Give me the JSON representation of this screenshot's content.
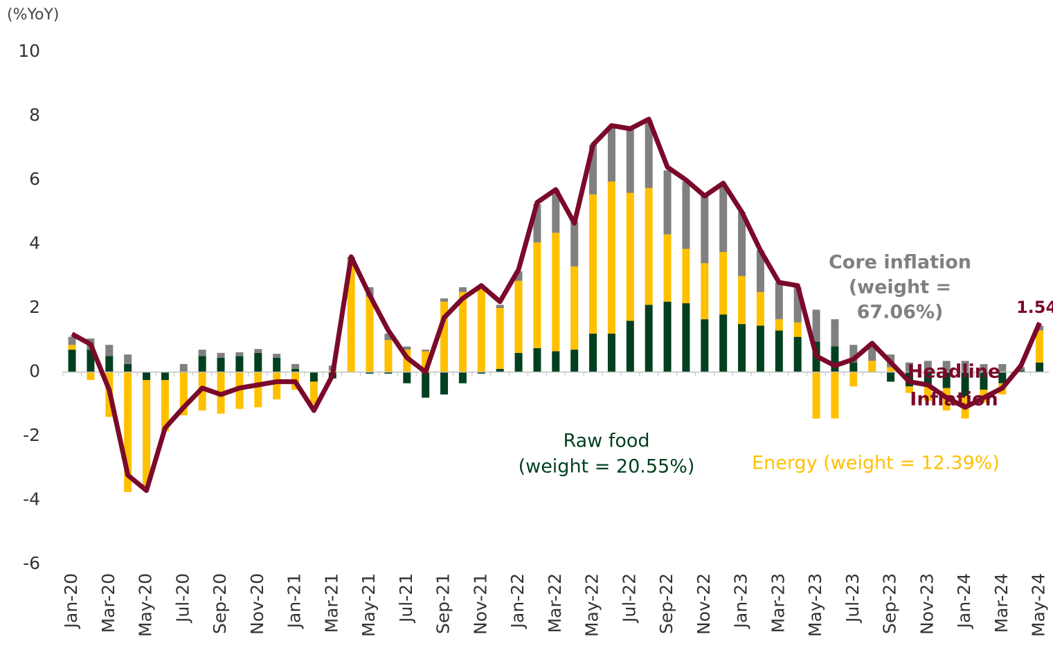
{
  "chart_data": {
    "type": "stacked-bar-line",
    "y_label": "(%YoY)",
    "categories": [
      "Jan-20",
      null,
      "Mar-20",
      null,
      "May-20",
      null,
      "Jul-20",
      null,
      "Sep-20",
      null,
      "Nov-20",
      null,
      "Jan-21",
      null,
      "Mar-21",
      null,
      "May-21",
      null,
      "Jul-21",
      null,
      "Sep-21",
      null,
      "Nov-21",
      null,
      "Jan-22",
      null,
      "Mar-22",
      null,
      "May-22",
      null,
      "Jul-22",
      null,
      "Sep-22",
      null,
      "Nov-22",
      null,
      "Jan-23",
      null,
      "Mar-23",
      null,
      "May-23",
      null,
      "Jul-23",
      null,
      "Sep-23",
      null,
      "Nov-23",
      null,
      "Jan-24",
      null,
      "Mar-24",
      null,
      "May-24"
    ],
    "ylim": [
      -6,
      10
    ],
    "yticks": [
      -6,
      -4,
      -2,
      0,
      2,
      4,
      6,
      8,
      10
    ],
    "series": [
      {
        "name": [
          "Raw food",
          "(weight = 20.55%)"
        ],
        "kind": "bar",
        "color": "#00401f",
        "values": [
          0.7,
          0.7,
          0.5,
          0.25,
          -0.25,
          -0.25,
          0,
          0.5,
          0.45,
          0.5,
          0.6,
          0.45,
          0.1,
          -0.3,
          -0.2,
          0,
          -0.05,
          -0.05,
          -0.35,
          -0.8,
          -0.7,
          -0.35,
          -0.05,
          0.1,
          0.6,
          0.75,
          0.65,
          0.7,
          1.2,
          1.2,
          1.6,
          2.1,
          2.2,
          2.15,
          1.65,
          1.8,
          1.5,
          1.45,
          1.3,
          1.1,
          0.95,
          0.8,
          0.3,
          0,
          -0.3,
          -0.45,
          -0.4,
          -0.5,
          -0.75,
          -0.55,
          -0.35,
          0.05,
          0.3
        ]
      },
      {
        "name": [
          "Energy (weight = 12.39%)"
        ],
        "kind": "bar",
        "color": "#ffc000",
        "values": [
          0.15,
          -0.25,
          -1.4,
          -3.75,
          -3.3,
          -1.6,
          -1.35,
          -1.2,
          -1.3,
          -1.15,
          -1.1,
          -0.85,
          -0.55,
          -0.7,
          0.05,
          3.5,
          2.35,
          1.0,
          0.7,
          0.65,
          2.2,
          2.5,
          2.6,
          1.9,
          2.25,
          3.3,
          3.7,
          2.6,
          4.35,
          4.75,
          4.0,
          3.65,
          2.1,
          1.7,
          1.75,
          1.95,
          1.5,
          1.05,
          0.35,
          0.45,
          -1.45,
          -1.45,
          -0.45,
          0.35,
          0.15,
          -0.2,
          -0.5,
          -0.7,
          -0.7,
          -0.4,
          -0.35,
          0,
          1.0
        ]
      },
      {
        "name": [
          "Core inflation",
          "(weight =",
          "67.06%)"
        ],
        "kind": "bar",
        "color": "#808080",
        "values": [
          0.25,
          0.35,
          0.35,
          0.3,
          0,
          0,
          0.25,
          0.2,
          0.15,
          0.12,
          0.12,
          0.12,
          0.15,
          0,
          0.15,
          0.1,
          0.3,
          0.2,
          0.1,
          0.05,
          0.1,
          0.15,
          0.05,
          0.1,
          0.3,
          1.2,
          1.35,
          1.4,
          1.55,
          1.7,
          2.0,
          2.1,
          2.0,
          2.1,
          2.1,
          2.1,
          2.0,
          1.3,
          1.15,
          1.1,
          1.0,
          0.85,
          0.55,
          0.55,
          0.4,
          0.3,
          0.35,
          0.35,
          0.35,
          0.25,
          0.25,
          0.1,
          0.15
        ]
      },
      {
        "name": [
          "Headline",
          "Inflation"
        ],
        "kind": "line",
        "color": "#7b0a2a",
        "values": [
          1.19,
          0.87,
          -0.56,
          -3.22,
          -3.7,
          -1.75,
          -1.1,
          -0.5,
          -0.7,
          -0.5,
          -0.4,
          -0.3,
          -0.3,
          -1.2,
          -0.1,
          3.6,
          2.4,
          1.3,
          0.45,
          0,
          1.7,
          2.3,
          2.7,
          2.2,
          3.2,
          5.3,
          5.7,
          4.65,
          7.1,
          7.7,
          7.6,
          7.9,
          6.4,
          6.0,
          5.5,
          5.9,
          5.0,
          3.8,
          2.8,
          2.7,
          0.5,
          0.2,
          0.4,
          0.9,
          0.3,
          -0.3,
          -0.4,
          -0.8,
          -1.1,
          -0.8,
          -0.5,
          0.2,
          1.54
        ]
      }
    ]
  }
}
